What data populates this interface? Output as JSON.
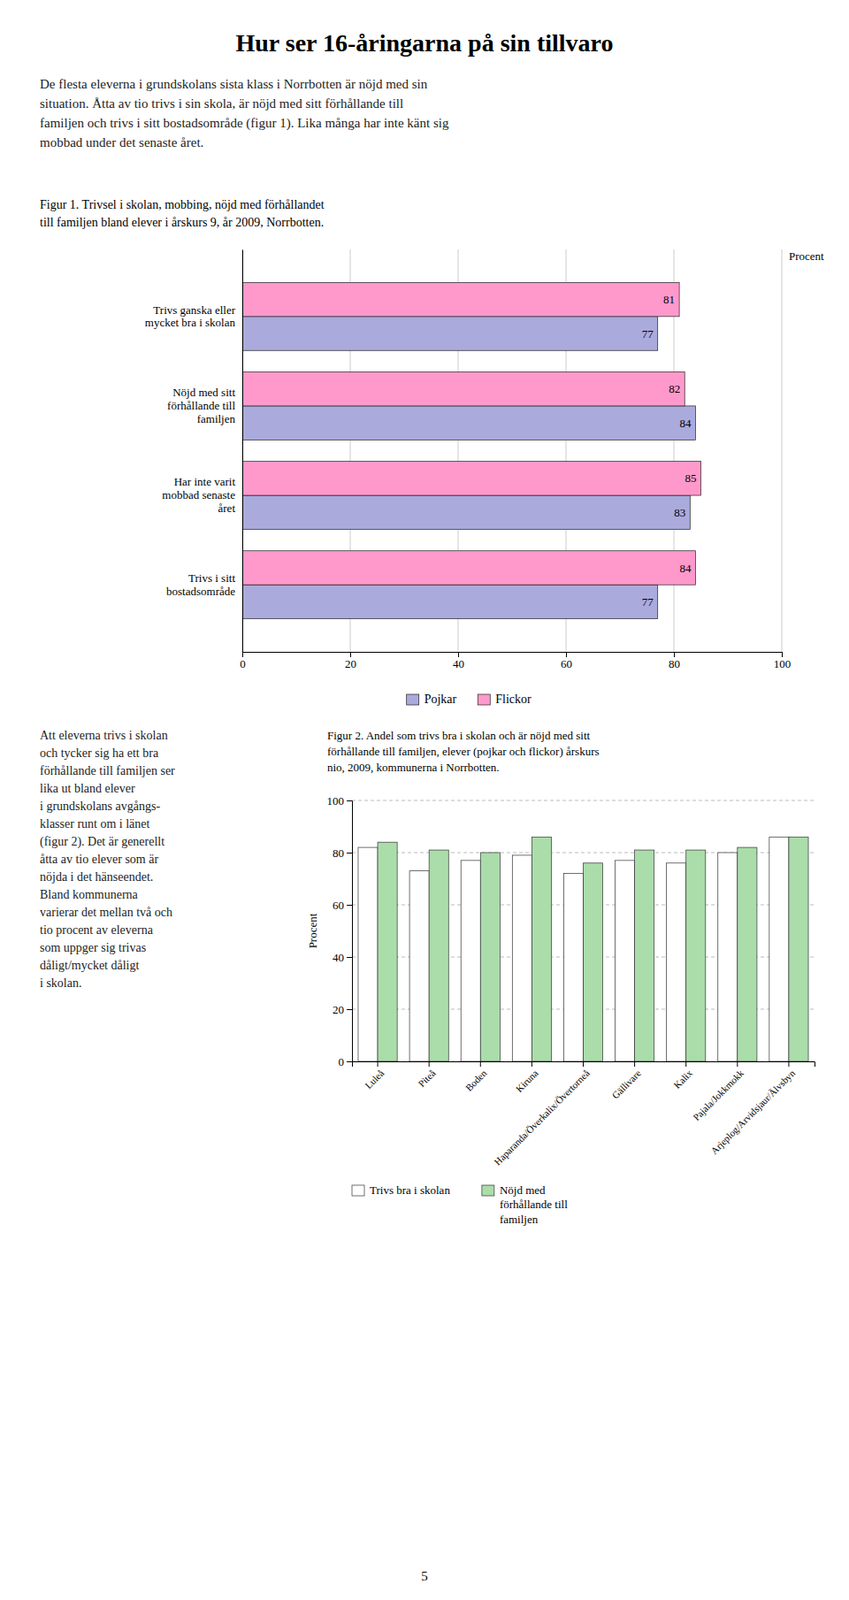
{
  "title": "Hur ser 16-åringarna på sin tillvaro",
  "paragraphs": [
    "De flesta eleverna i grundskolans sista klass i Norrbotten är nöjd med sin\nsituation. Åtta av tio trivs i sin skola, är nöjd med sitt förhållande till\nfamiljen och trivs i sitt bostadsområde (figur 1). Lika många har inte känt sig\nmobbad under det senaste året.",
    "Att eleverna trivs i skolan\noch tycker sig ha ett bra\nförhållande till familjen ser\nlika ut bland elever\ni grundskolans avgångs-\nklasser runt om i länet\n(figur 2). Det är generellt\nåtta av tio elever som är\nnöjda i det hänseendet.\nBland kommunerna\nvarierar det mellan två och\ntio procent av eleverna\nsom uppger sig trivas\ndåligt/mycket dåligt\ni skolan."
  ],
  "page_number": "5",
  "chart_data": [
    {
      "type": "bar",
      "orientation": "horizontal",
      "title": "Figur 1.  Trivsel i skolan, mobbing, nöjd med förhållandet\ntill familjen bland elever i årskurs 9, år 2009, Norrbotten.",
      "categories": [
        "Trivs ganska eller\nmycket bra i skolan",
        "Nöjd med sitt\nförhållande till\nfamiljen",
        "Har inte varit\nmobbad senaste\nåret",
        "Trivs i sitt\nbostadsområde"
      ],
      "series": [
        {
          "name": "Pojkar",
          "color": "#aaaadd",
          "values": [
            77,
            84,
            83,
            77
          ]
        },
        {
          "name": "Flickor",
          "color": "#ff99cc",
          "values": [
            81,
            82,
            85,
            84
          ]
        }
      ],
      "xlabel": "Procent",
      "xlim": [
        0,
        100
      ],
      "xticks": [
        0,
        20,
        40,
        60,
        80,
        100
      ],
      "grid": true,
      "data_labels": true,
      "legend": "bottom"
    },
    {
      "type": "bar",
      "title": "Figur 2.  Andel som trivs bra i skolan och är nöjd med sitt\nförhållande till familjen, elever (pojkar och flickor) årskurs\nnio, 2009, kommunerna i Norrbotten.",
      "categories": [
        "Luleå",
        "Piteå",
        "Boden",
        "Kiruna",
        "Haparanda/Överkalix/Övertorneå",
        "Gällivare",
        "Kalix",
        "Pajala/Jokkmokk",
        "Arjeplog/Arvidsjaur/Älvsbyn"
      ],
      "series": [
        {
          "name": "Trivs bra i skolan",
          "color": "#ffffff",
          "values": [
            82,
            73,
            77,
            79,
            72,
            77,
            76,
            80,
            86
          ]
        },
        {
          "name": "Nöjd med\nförhållande till\nfamiljen",
          "color": "#aaddaa",
          "values": [
            84,
            81,
            80,
            86,
            76,
            81,
            81,
            82,
            86
          ]
        }
      ],
      "ylabel": "Procent",
      "ylim": [
        0,
        100
      ],
      "yticks": [
        0,
        20,
        40,
        60,
        80,
        100
      ],
      "grid": true,
      "legend": "bottom"
    }
  ]
}
